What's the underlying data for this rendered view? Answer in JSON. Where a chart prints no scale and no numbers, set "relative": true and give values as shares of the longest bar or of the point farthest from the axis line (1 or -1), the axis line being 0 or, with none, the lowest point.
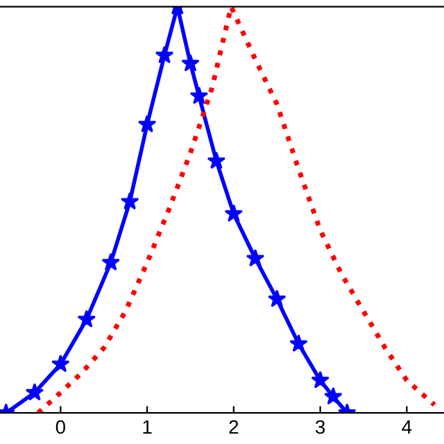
{
  "chart_data": {
    "type": "line",
    "relative": true,
    "xlim": [
      -0.7,
      4.43
    ],
    "xticks": [
      0,
      1,
      2,
      3,
      4
    ],
    "grid": false,
    "series": [
      {
        "color": "#0000ff",
        "marker": "star",
        "line_style": "solid",
        "x": [
          -0.63,
          -0.3,
          0,
          0.3,
          0.58,
          0.8,
          1,
          1.2,
          1.35,
          1.5,
          1.6,
          1.8,
          2,
          2.25,
          2.5,
          2.75,
          3,
          3.15,
          3.31
        ],
        "values": [
          0,
          0.05,
          0.12,
          0.23,
          0.37,
          0.52,
          0.71,
          0.88,
          1,
          0.86,
          0.78,
          0.62,
          0.49,
          0.38,
          0.28,
          0.17,
          0.08,
          0.04,
          0
        ]
      },
      {
        "color": "#ff0000",
        "marker": "none",
        "line_style": "dotted",
        "x": [
          -0.26,
          0,
          0.25,
          0.5,
          0.75,
          1,
          1.25,
          1.5,
          1.75,
          1.97,
          2.25,
          2.5,
          2.75,
          3,
          3.25,
          3.5,
          3.75,
          4,
          4.32
        ],
        "values": [
          0,
          0.05,
          0.1,
          0.16,
          0.25,
          0.37,
          0.5,
          0.64,
          0.8,
          1,
          0.87,
          0.76,
          0.6,
          0.45,
          0.34,
          0.25,
          0.16,
          0.08,
          0.02
        ]
      }
    ]
  }
}
